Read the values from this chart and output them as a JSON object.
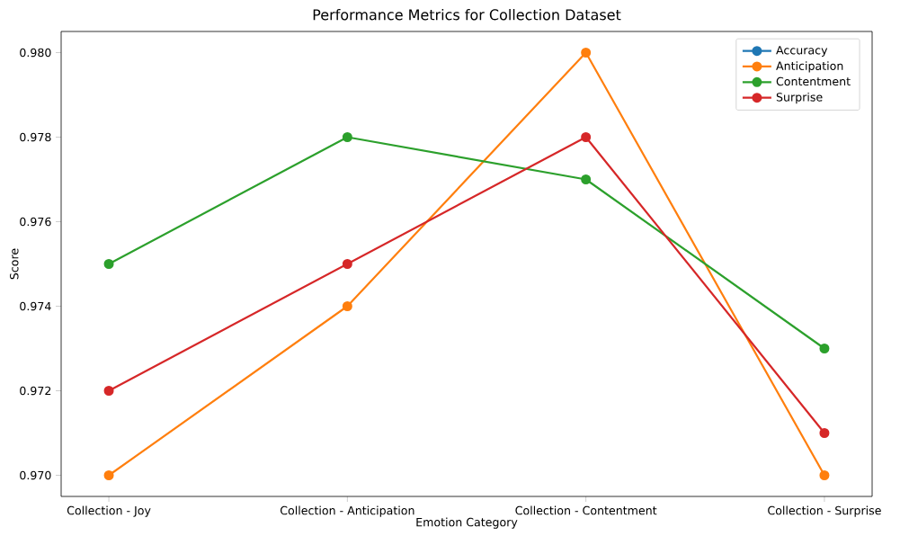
{
  "chart_data": {
    "type": "line",
    "title": "Performance Metrics for Collection Dataset",
    "xlabel": "Emotion Category",
    "ylabel": "Score",
    "categories": [
      "Collection - Joy",
      "Collection - Anticipation",
      "Collection - Contentment",
      "Collection - Surprise"
    ],
    "series": [
      {
        "name": "Accuracy",
        "color": "#1f77b4",
        "values": [
          null,
          null,
          null,
          null
        ]
      },
      {
        "name": "Anticipation",
        "color": "#ff7f0e",
        "values": [
          0.97,
          0.974,
          0.98,
          0.97
        ]
      },
      {
        "name": "Contentment",
        "color": "#2ca02c",
        "values": [
          0.975,
          0.978,
          0.977,
          0.973
        ]
      },
      {
        "name": "Surprise",
        "color": "#d62728",
        "values": [
          0.972,
          0.975,
          0.978,
          0.971
        ]
      }
    ],
    "ylim": [
      0.9695,
      0.9805
    ],
    "yticks": [
      {
        "value": 0.97,
        "label": "0.970"
      },
      {
        "value": 0.972,
        "label": "0.972"
      },
      {
        "value": 0.974,
        "label": "0.974"
      },
      {
        "value": 0.976,
        "label": "0.976"
      },
      {
        "value": 0.978,
        "label": "0.978"
      },
      {
        "value": 0.98,
        "label": "0.980"
      }
    ],
    "grid": false,
    "legend": "top right",
    "marker": "circle",
    "line_style": "solid"
  }
}
